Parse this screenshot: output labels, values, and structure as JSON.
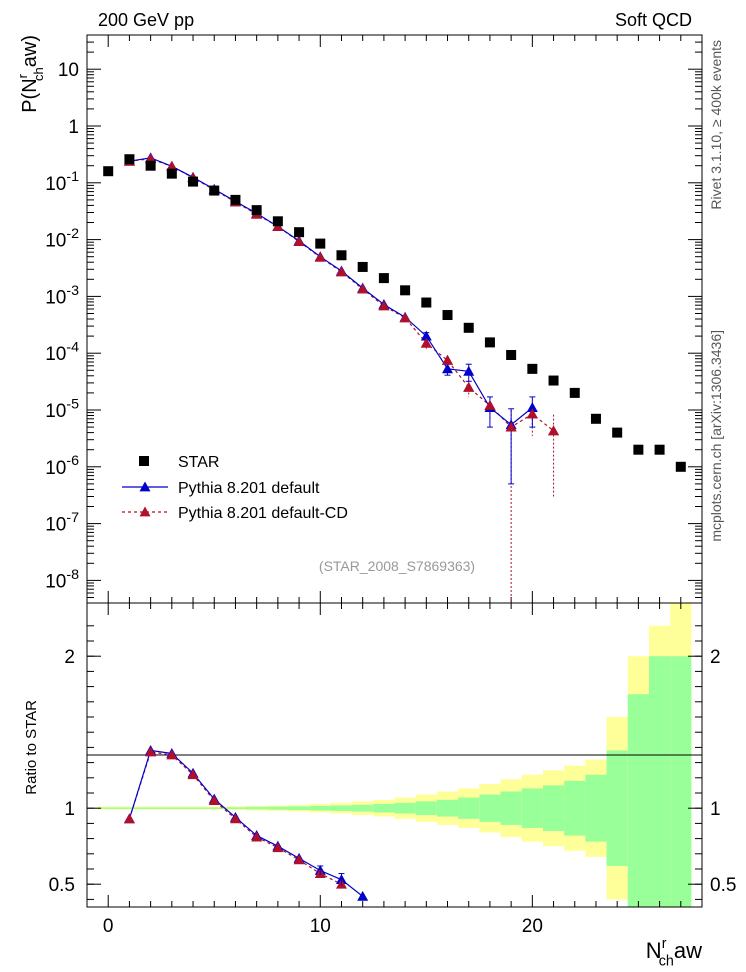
{
  "header": {
    "left_label": "200 GeV pp",
    "right_label": "Soft QCD"
  },
  "side_labels": {
    "rivet": "Rivet 3.1.10, ≥ 400k events",
    "mcplots": "mcplots.cern.ch [arXiv:1306.3436]"
  },
  "colors": {
    "star": "#000000",
    "default": "#0000cc",
    "default_cd": "#b0102a",
    "band_inner": "#99ff99",
    "band_outer": "#ffff99"
  },
  "chart_data": [
    {
      "type": "scatter",
      "panel": "main",
      "title": "",
      "xlabel": "N_ch^r aw",
      "ylabel": "P(N_ch^r aw)",
      "xlim": [
        -1,
        28
      ],
      "ylim": [
        4e-09,
        40
      ],
      "yscale": "log",
      "x_ticks": [
        0,
        10,
        20
      ],
      "y_tick_labels": [
        "10",
        "1",
        "10^-1",
        "10^-2",
        "10^-3",
        "10^-4",
        "10^-5",
        "10^-6",
        "10^-7",
        "10^-8"
      ],
      "annotation": "(STAR_2008_S7869363)",
      "legend": {
        "placement": "bottom-left",
        "entries": [
          "STAR",
          "Pythia 8.201 default",
          "Pythia 8.201 default-CD"
        ]
      },
      "series": [
        {
          "name": "STAR",
          "marker": "square",
          "x": [
            0,
            1,
            2,
            3,
            4,
            5,
            6,
            7,
            8,
            9,
            10,
            11,
            12,
            13,
            14,
            15,
            16,
            17,
            18,
            19,
            20,
            21,
            22,
            23,
            24,
            25,
            26,
            27
          ],
          "y": [
            0.16,
            0.26,
            0.2,
            0.145,
            0.105,
            0.073,
            0.05,
            0.033,
            0.021,
            0.0135,
            0.0085,
            0.0053,
            0.0033,
            0.0021,
            0.00128,
            0.00078,
            0.00047,
            0.00028,
            0.000155,
            9.3e-05,
            5.3e-05,
            3.3e-05,
            2e-05,
            7e-06,
            4e-06,
            2e-06,
            2e-06,
            1e-06
          ]
        },
        {
          "name": "Pythia 8.201 default",
          "marker": "triangle",
          "x": [
            1,
            2,
            3,
            4,
            5,
            6,
            7,
            8,
            9,
            10,
            11,
            12,
            13,
            14,
            15,
            16,
            17,
            18,
            19,
            20
          ],
          "y": [
            0.24,
            0.275,
            0.195,
            0.125,
            0.077,
            0.047,
            0.029,
            0.017,
            0.0095,
            0.005,
            0.0028,
            0.0014,
            0.00072,
            0.00043,
            0.0002,
            5.3e-05,
            4.8e-05,
            1.1e-05,
            5.5e-06,
            1.1e-05
          ],
          "yerr": [
            0,
            0,
            0,
            0,
            0,
            0,
            0,
            0,
            0,
            0,
            0,
            0,
            0,
            0,
            3e-05,
            1.2e-05,
            1.6e-05,
            6e-06,
            5e-06,
            6e-06
          ]
        },
        {
          "name": "Pythia 8.201 default-CD",
          "marker": "triangle",
          "x": [
            1,
            2,
            3,
            4,
            5,
            6,
            7,
            8,
            9,
            10,
            11,
            12,
            13,
            14,
            15,
            16,
            17,
            18,
            19,
            20,
            21
          ],
          "y": [
            0.24,
            0.265,
            0.195,
            0.123,
            0.075,
            0.046,
            0.028,
            0.017,
            0.0092,
            0.0049,
            0.0027,
            0.00135,
            0.00068,
            0.00042,
            0.00015,
            7.5e-05,
            2.5e-05,
            1.2e-05,
            5e-06,
            8.5e-06,
            4.3e-06
          ],
          "yerr": [
            0,
            0,
            0,
            0,
            0,
            0,
            0,
            0,
            0,
            0,
            0,
            0,
            0,
            0,
            3e-05,
            1.5e-05,
            8e-06,
            5e-06,
            5e-06,
            5e-06,
            4e-06
          ]
        }
      ]
    },
    {
      "type": "line",
      "panel": "ratio",
      "title": "",
      "xlabel": "N_ch^r aw",
      "ylabel": "Ratio to STAR",
      "xlim": [
        -1,
        28
      ],
      "ylim": [
        0.35,
        2.35
      ],
      "x_tick_labels": [
        "0",
        "10",
        "20"
      ],
      "y_tick_labels": [
        "0.5",
        "1",
        "2"
      ],
      "series": [
        {
          "name": "Pythia 8.201 default",
          "x": [
            1,
            2,
            3,
            4,
            5,
            6,
            7,
            8,
            9,
            10,
            11,
            12
          ],
          "y": [
            0.93,
            1.38,
            1.36,
            1.23,
            1.06,
            0.94,
            0.82,
            0.75,
            0.67,
            0.59,
            0.53,
            0.42
          ]
        },
        {
          "name": "Pythia 8.201 default-CD",
          "x": [
            1,
            2,
            3,
            4,
            5,
            6,
            7,
            8,
            9,
            10,
            11
          ],
          "y": [
            0.93,
            1.37,
            1.35,
            1.22,
            1.05,
            0.93,
            0.81,
            0.74,
            0.66,
            0.57,
            0.5
          ]
        }
      ],
      "bands": {
        "x": [
          0,
          1,
          2,
          3,
          4,
          5,
          6,
          7,
          8,
          9,
          10,
          11,
          12,
          13,
          14,
          15,
          16,
          17,
          18,
          19,
          20,
          21,
          22,
          23,
          24,
          25,
          26,
          27
        ],
        "inner": [
          0.005,
          0.005,
          0.005,
          0.005,
          0.005,
          0.005,
          0.006,
          0.008,
          0.01,
          0.012,
          0.015,
          0.018,
          0.022,
          0.028,
          0.035,
          0.045,
          0.055,
          0.07,
          0.09,
          0.11,
          0.13,
          0.15,
          0.18,
          0.22,
          0.38,
          0.75,
          1.0,
          1.0
        ],
        "outer": [
          0.01,
          0.01,
          0.01,
          0.01,
          0.01,
          0.01,
          0.012,
          0.015,
          0.018,
          0.022,
          0.028,
          0.035,
          0.045,
          0.055,
          0.07,
          0.09,
          0.11,
          0.13,
          0.16,
          0.19,
          0.22,
          0.25,
          0.28,
          0.32,
          0.6,
          1.0,
          1.2,
          1.35
        ]
      }
    }
  ]
}
